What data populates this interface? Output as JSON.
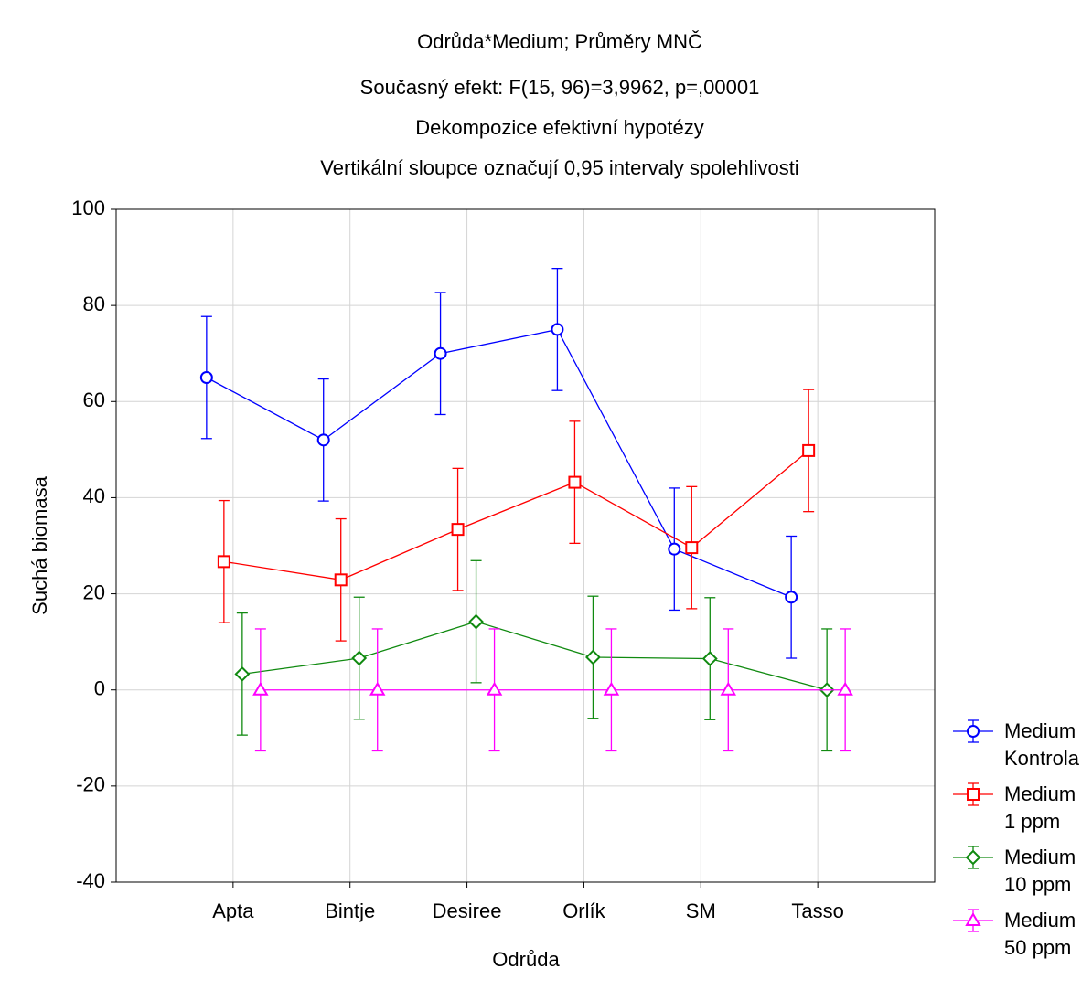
{
  "chart_data": {
    "type": "line",
    "title": "Odrůda*Medium; Průměry MNČ",
    "subtitles": [
      "Současný efekt: F(15, 96)=3,9962, p=,00001",
      "Dekompozice efektivní hypotézy",
      "Vertikální sloupce označují 0,95 intervaly spolehlivosti"
    ],
    "x_label": "Odrůda",
    "y_label": "Suchá biomasa",
    "categories": [
      "Apta",
      "Bintje",
      "Desiree",
      "Orlík",
      "SM",
      "Tasso"
    ],
    "ylim": [
      -40,
      100
    ],
    "yticks": [
      -40,
      -20,
      0,
      20,
      40,
      60,
      80,
      100
    ],
    "grid": true,
    "legend": "bottom-right",
    "series": [
      {
        "name": "Medium Kontrola",
        "color": "#0000ff",
        "marker": "circle",
        "values": [
          65,
          52,
          70,
          75,
          29.3,
          19.3
        ],
        "errors": [
          12.7,
          12.7,
          12.7,
          12.7,
          12.7,
          12.7
        ]
      },
      {
        "name": "Medium 1 ppm",
        "color": "#ff0000",
        "marker": "square",
        "values": [
          26.7,
          22.9,
          33.4,
          43.2,
          29.6,
          49.8
        ],
        "errors": [
          12.7,
          12.7,
          12.7,
          12.7,
          12.7,
          12.7
        ]
      },
      {
        "name": "Medium 10 ppm",
        "color": "#108a10",
        "marker": "diamond",
        "values": [
          3.3,
          6.6,
          14.2,
          6.8,
          6.5,
          0
        ],
        "errors": [
          12.7,
          12.7,
          12.7,
          12.7,
          12.7,
          12.7
        ]
      },
      {
        "name": "Medium 50 ppm",
        "color": "#ff00ff",
        "marker": "triangle",
        "values": [
          0,
          0,
          0,
          0,
          0,
          0
        ],
        "errors": [
          12.7,
          12.7,
          12.7,
          12.7,
          12.7,
          12.7
        ]
      }
    ]
  }
}
